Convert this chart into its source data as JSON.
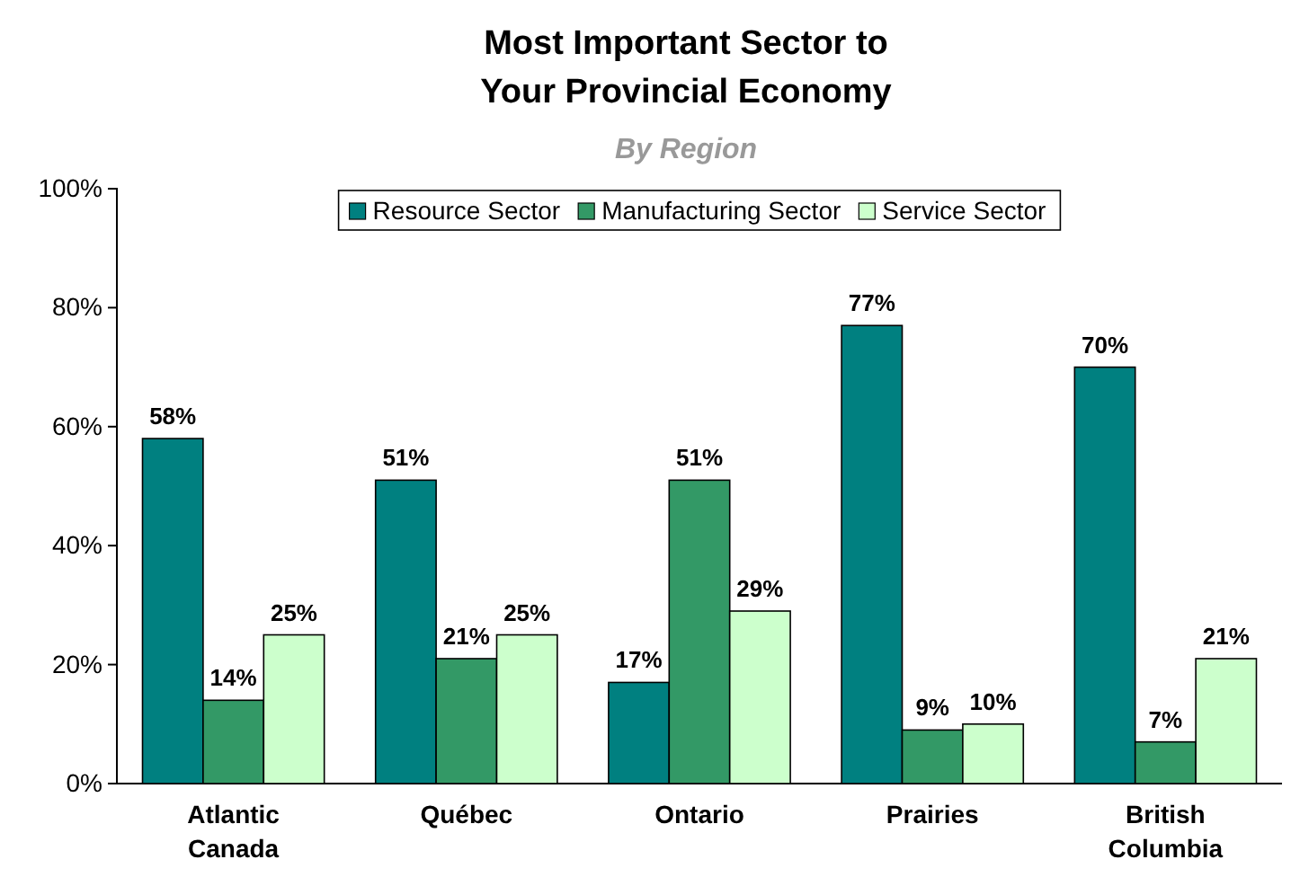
{
  "chart_data": {
    "type": "bar",
    "title": "Most Important Sector to Your Provincial Economy",
    "subtitle": "By Region",
    "categories": [
      "Atlantic Canada",
      "Québec",
      "Ontario",
      "Prairies",
      "British Columbia"
    ],
    "series": [
      {
        "name": "Resource Sector",
        "color": "#008080",
        "values": [
          58,
          51,
          17,
          77,
          70
        ],
        "value_labels": [
          "58%",
          "51%",
          "17%",
          "77%",
          "70%"
        ]
      },
      {
        "name": "Manufacturing Sector",
        "color": "#339966",
        "values": [
          14,
          21,
          51,
          9,
          7
        ],
        "value_labels": [
          "14%",
          "21%",
          "51%",
          "9%",
          "7%"
        ]
      },
      {
        "name": "Service Sector",
        "color": "#ccffcc",
        "values": [
          25,
          25,
          29,
          10,
          21
        ],
        "value_labels": [
          "25%",
          "25%",
          "29%",
          "10%",
          "21%"
        ]
      }
    ],
    "ylim": [
      0,
      100
    ],
    "yticks": [
      {
        "value": 0,
        "label": "0%"
      },
      {
        "value": 20,
        "label": "20%"
      },
      {
        "value": 40,
        "label": "40%"
      },
      {
        "value": 60,
        "label": "60%"
      },
      {
        "value": 80,
        "label": "80%"
      },
      {
        "value": 100,
        "label": "100%"
      }
    ],
    "grid": false,
    "legend": "top"
  }
}
